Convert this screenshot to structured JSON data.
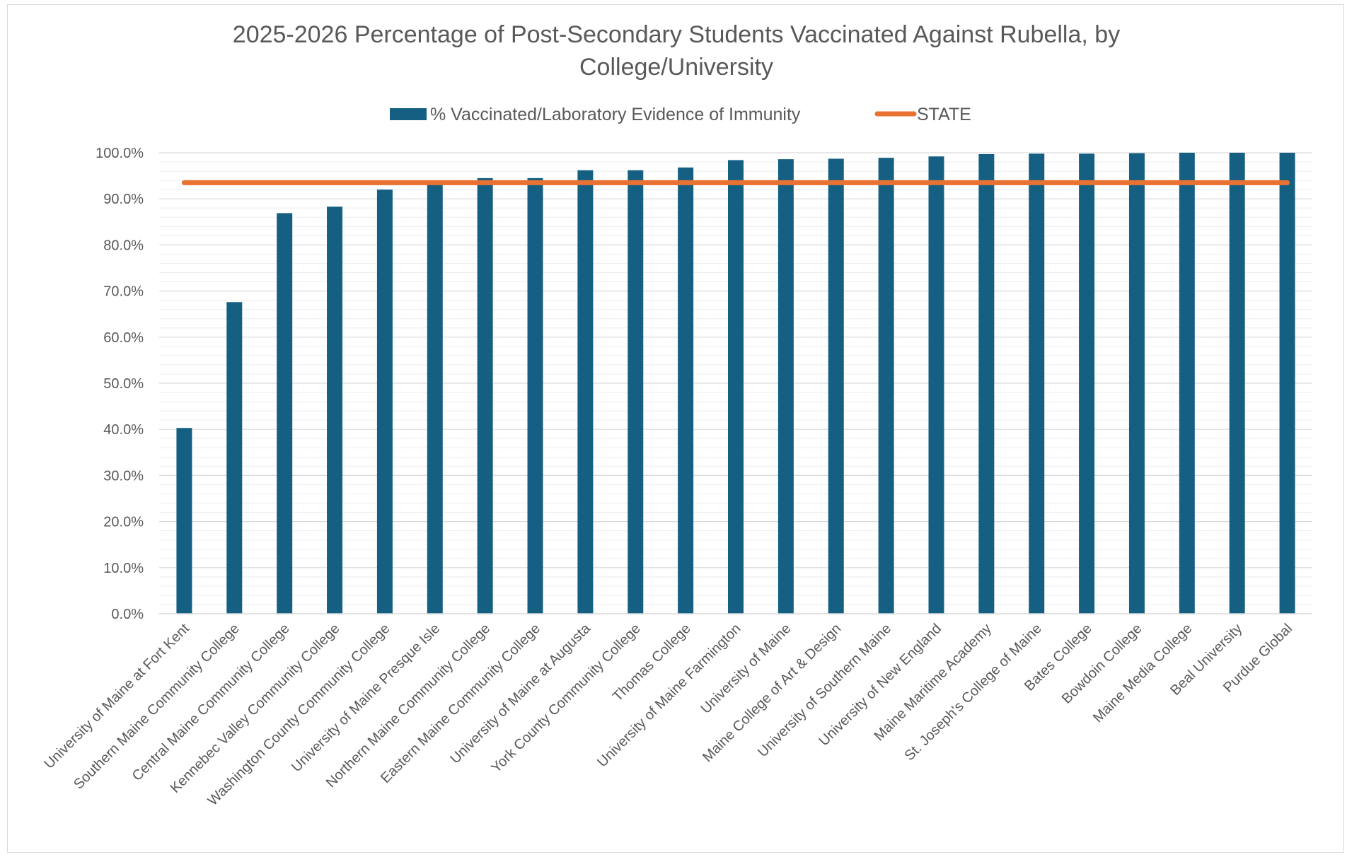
{
  "chart_data": {
    "type": "bar",
    "title": "2025-2026 Percentage of Post-Secondary Students Vaccinated Against Rubella, by College/University",
    "title_lines": [
      "2025-2026 Percentage of Post-Secondary Students Vaccinated Against Rubella, by",
      "College/University"
    ],
    "xlabel": "",
    "ylabel": "",
    "ylim": [
      0,
      100
    ],
    "y_ticks": [
      "0.0%",
      "10.0%",
      "20.0%",
      "30.0%",
      "40.0%",
      "50.0%",
      "60.0%",
      "70.0%",
      "80.0%",
      "90.0%",
      "100.0%"
    ],
    "grid": true,
    "legend_position": "top",
    "categories": [
      "University of Maine at Fort Kent",
      "Southern Maine Community College",
      "Central Maine Community College",
      "Kennebec Valley Community College",
      "Washington County Community College",
      "University of Maine Presque Isle",
      "Northern Maine Community College",
      "Eastern Maine Community College",
      "University of Maine at Augusta",
      "York County Community College",
      "Thomas College",
      "University of Maine Farmington",
      "University of Maine",
      "Maine College of Art & Design",
      "University of Southern Maine",
      "University of New England",
      "Maine Maritime Academy",
      "St. Joseph's College of Maine",
      "Bates College",
      "Bowdoin College",
      "Maine Media College",
      "Beal University",
      "Purdue Global"
    ],
    "series": [
      {
        "name": "% Vaccinated/Laboratory Evidence of Immunity",
        "type": "bar",
        "color": "#156082",
        "values": [
          40.3,
          67.6,
          86.9,
          88.3,
          92.0,
          93.4,
          94.5,
          94.5,
          96.2,
          96.2,
          96.8,
          98.4,
          98.6,
          98.7,
          98.9,
          99.2,
          99.7,
          99.8,
          99.8,
          99.9,
          100.0,
          100.0,
          100.0
        ]
      },
      {
        "name": "STATE",
        "type": "line",
        "color": "#e97132",
        "values": [
          93.5,
          93.5,
          93.5,
          93.5,
          93.5,
          93.5,
          93.5,
          93.5,
          93.5,
          93.5,
          93.5,
          93.5,
          93.5,
          93.5,
          93.5,
          93.5,
          93.5,
          93.5,
          93.5,
          93.5,
          93.5,
          93.5,
          93.5
        ]
      }
    ]
  }
}
